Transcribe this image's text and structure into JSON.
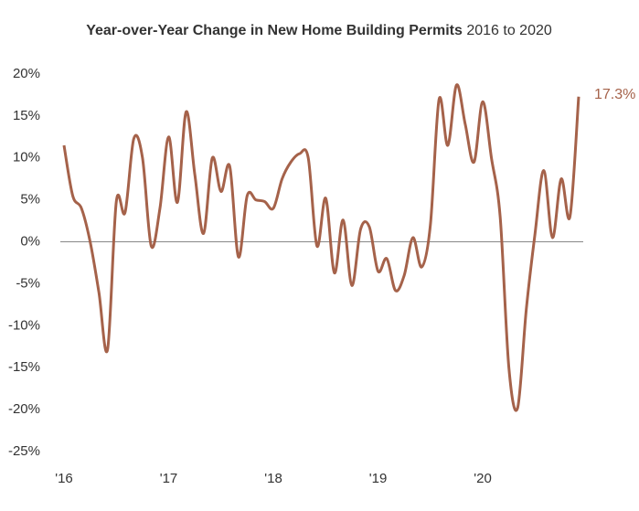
{
  "chart_data": {
    "type": "line",
    "title": "Year-over-Year Change in New Home Building Permits",
    "subtitle": "2016 to 2020",
    "categories": [
      "'16",
      null,
      null,
      null,
      null,
      null,
      null,
      null,
      null,
      null,
      null,
      null,
      "'17",
      null,
      null,
      null,
      null,
      null,
      null,
      null,
      null,
      null,
      null,
      null,
      "'18",
      null,
      null,
      null,
      null,
      null,
      null,
      null,
      null,
      null,
      null,
      null,
      "'19",
      null,
      null,
      null,
      null,
      null,
      null,
      null,
      null,
      null,
      null,
      null,
      "'20",
      null,
      null,
      null,
      null,
      null,
      null,
      null,
      null,
      null,
      null,
      null
    ],
    "series": [
      {
        "name": "New Home Building Permits",
        "color": "#a5624a",
        "values": [
          11.5,
          5.5,
          4,
          0,
          -6,
          -12.8,
          4.8,
          3.5,
          12.3,
          10,
          -0.5,
          4,
          12.5,
          4.7,
          15.5,
          8,
          1,
          10,
          6,
          9,
          -1.8,
          5.5,
          5,
          4.8,
          4,
          7.5,
          9.5,
          10.5,
          10,
          -0.5,
          5.2,
          -3.7,
          2.6,
          -5.2,
          1.5,
          1.8,
          -3.5,
          -2,
          -5.8,
          -4,
          0.5,
          -3,
          2,
          17,
          11.5,
          18.7,
          14,
          9.5,
          16.7,
          10,
          3,
          -15,
          -19.8,
          -8,
          1,
          8.5,
          0.5,
          7.5,
          3,
          17.3
        ],
        "value_labels": [
          null,
          null,
          null,
          null,
          null,
          null,
          null,
          null,
          null,
          null,
          null,
          null,
          null,
          null,
          null,
          null,
          null,
          null,
          null,
          null,
          null,
          null,
          null,
          null,
          null,
          null,
          null,
          null,
          null,
          null,
          null,
          null,
          null,
          null,
          null,
          null,
          null,
          null,
          null,
          null,
          null,
          null,
          null,
          null,
          null,
          null,
          null,
          null,
          null,
          null,
          null,
          null,
          null,
          null,
          null,
          null,
          null,
          null,
          null,
          "17.3%"
        ]
      }
    ],
    "ylim": [
      -25,
      20
    ],
    "yticks": [
      {
        "value": 20,
        "label": "20%"
      },
      {
        "value": 15,
        "label": "15%"
      },
      {
        "value": 10,
        "label": "10%"
      },
      {
        "value": 5,
        "label": "5%"
      },
      {
        "value": 0,
        "label": "0%"
      },
      {
        "value": -5,
        "label": "-5%"
      },
      {
        "value": -10,
        "label": "-10%"
      },
      {
        "value": -15,
        "label": "-15%"
      },
      {
        "value": -20,
        "label": "-20%"
      },
      {
        "value": -25,
        "label": "-25%"
      }
    ],
    "zero_line": true
  }
}
